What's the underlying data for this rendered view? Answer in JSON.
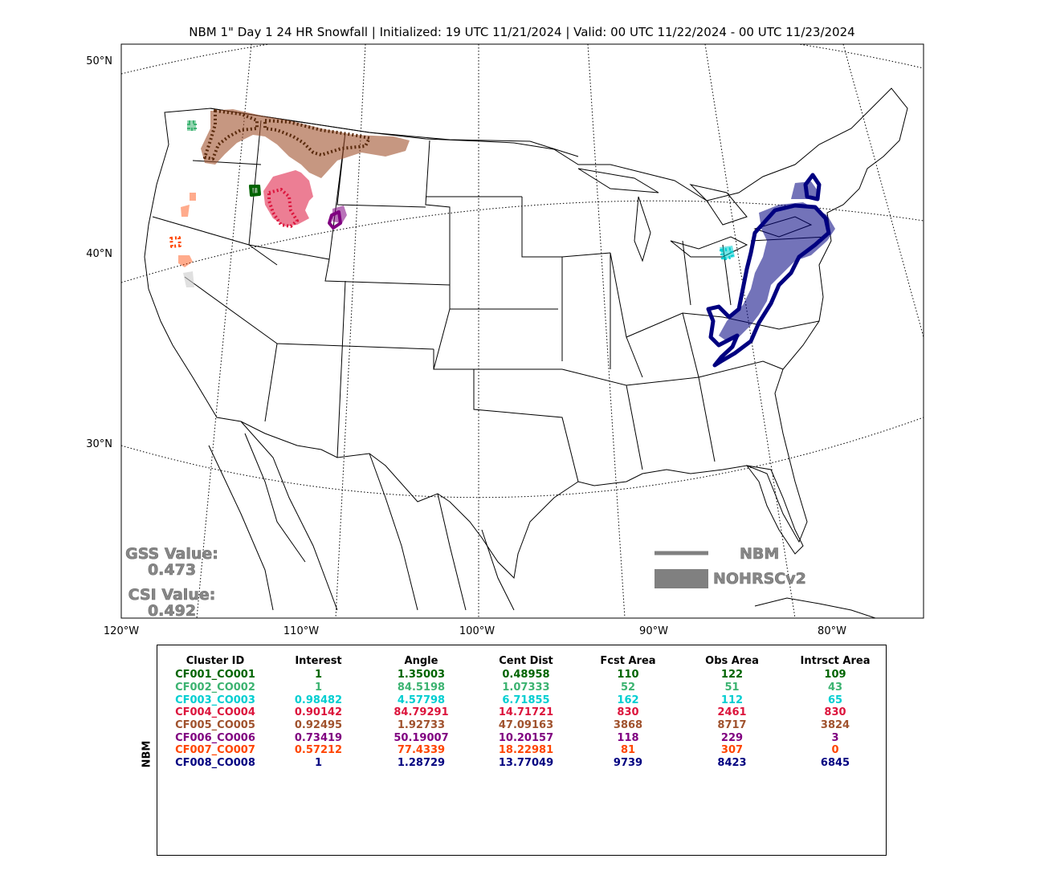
{
  "title": "NBM 1\" Day 1 24 HR Snowfall | Initialized: 19 UTC 11/21/2024 | Valid: 00 UTC 11/22/2024 - 00 UTC 11/23/2024",
  "lat_labels": [
    "50°N",
    "40°N",
    "30°N"
  ],
  "lon_labels": [
    "120°W",
    "110°W",
    "100°W",
    "90°W",
    "80°W"
  ],
  "scores": {
    "gss_label": "GSS Value:",
    "gss_value": "0.473",
    "csi_label": "CSI Value:",
    "csi_value": "0.492"
  },
  "legend": {
    "forecast": "NBM",
    "observed": "NOHRSCv2",
    "color": "#808080"
  },
  "table": {
    "y_label": "NBM",
    "headers": [
      "Cluster ID",
      "Interest",
      "Angle",
      "Cent Dist",
      "Fcst Area",
      "Obs Area",
      "Intrsct Area"
    ],
    "rows": [
      {
        "color": "#006400",
        "cells": [
          "CF001_CO001",
          "1",
          "1.35003",
          "0.48958",
          "110",
          "122",
          "109"
        ]
      },
      {
        "color": "#3cb371",
        "cells": [
          "CF002_CO002",
          "1",
          "84.5198",
          "1.07333",
          "52",
          "51",
          "43"
        ]
      },
      {
        "color": "#00ced1",
        "cells": [
          "CF003_CO003",
          "0.98482",
          "4.57798",
          "6.71855",
          "162",
          "112",
          "65"
        ]
      },
      {
        "color": "#dc143c",
        "cells": [
          "CF004_CO004",
          "0.90142",
          "84.79291",
          "14.71721",
          "830",
          "2461",
          "830"
        ]
      },
      {
        "color": "#a0522d",
        "cells": [
          "CF005_CO005",
          "0.92495",
          "1.92733",
          "47.09163",
          "3868",
          "8717",
          "3824"
        ]
      },
      {
        "color": "#800080",
        "cells": [
          "CF006_CO006",
          "0.73419",
          "50.19007",
          "10.20157",
          "118",
          "229",
          "3"
        ]
      },
      {
        "color": "#ff4500",
        "cells": [
          "CF007_CO007",
          "0.57212",
          "77.4339",
          "18.22981",
          "81",
          "307",
          "0"
        ]
      },
      {
        "color": "#000080",
        "cells": [
          "CF008_CO008",
          "1",
          "1.28729",
          "13.77049",
          "9739",
          "8423",
          "6845"
        ]
      }
    ]
  }
}
